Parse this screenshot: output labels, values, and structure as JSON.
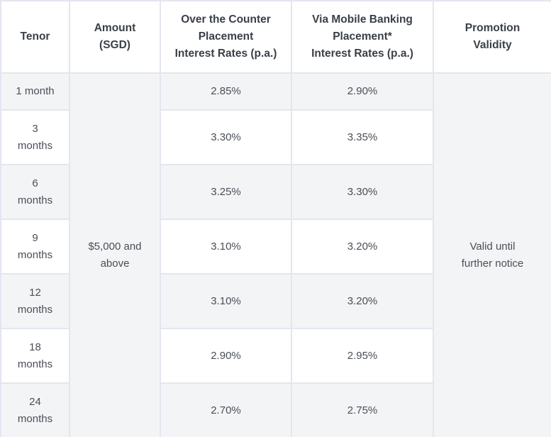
{
  "table": {
    "headers": {
      "tenor": "Tenor",
      "amount_1": "Amount",
      "amount_2": "(SGD)",
      "otc_1": "Over the Counter",
      "otc_2": "Placement",
      "otc_3": "Interest Rates (p.a.)",
      "mb_1": "Via Mobile Banking",
      "mb_2": "Placement*",
      "mb_3": "Interest Rates (p.a.)",
      "promo_1": "Promotion",
      "promo_2": "Validity"
    },
    "amount_1": "$5,000 and",
    "amount_2": "above",
    "validity_1": "Valid until",
    "validity_2": "further notice",
    "rows": [
      {
        "tenor_1": "1 month",
        "tenor_2": "",
        "otc": "2.85%",
        "mobile": "2.90%"
      },
      {
        "tenor_1": "3",
        "tenor_2": "months",
        "otc": "3.30%",
        "mobile": "3.35%"
      },
      {
        "tenor_1": "6",
        "tenor_2": "months",
        "otc": "3.25%",
        "mobile": "3.30%"
      },
      {
        "tenor_1": "9",
        "tenor_2": "months",
        "otc": "3.10%",
        "mobile": "3.20%"
      },
      {
        "tenor_1": "12",
        "tenor_2": "months",
        "otc": "3.10%",
        "mobile": "3.20%"
      },
      {
        "tenor_1": "18",
        "tenor_2": "months",
        "otc": "2.90%",
        "mobile": "2.95%"
      },
      {
        "tenor_1": "24",
        "tenor_2": "months",
        "otc": "2.70%",
        "mobile": "2.75%"
      }
    ]
  }
}
